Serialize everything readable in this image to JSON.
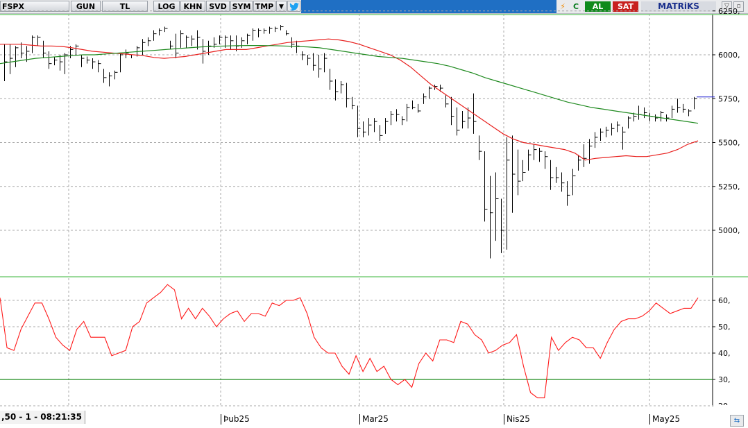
{
  "toolbar": {
    "symbol": "FSPX",
    "buttons": [
      "GUN",
      "TL",
      "LOG",
      "KHN",
      "SVD",
      "SYM",
      "TMP"
    ],
    "al_label": "AL",
    "sat_label": "SAT",
    "brand": "MATRiKS",
    "refresh_label": "C"
  },
  "status_text": ",50 - 1 - 08:21:35",
  "x_labels": [
    "Þub25",
    "Mar25",
    "Nis25",
    "May25"
  ],
  "colors": {
    "price_bars": "#000000",
    "ma_fast": "#e8201e",
    "ma_slow": "#1f8a1f",
    "rsi": "#ff1a1a",
    "rsi_level": "#1a8a1a",
    "panel_border": "#7acd7a",
    "toolbar_blue": "#1f6fc4"
  },
  "chart_data": [
    {
      "type": "ohlc",
      "panel": "price",
      "ylim": [
        4820,
        6260
      ],
      "yticks": [
        6250,
        6000,
        5750,
        5500,
        5250,
        5000
      ],
      "ytick_labels": [
        "6250,",
        "6000,",
        "5750,",
        "5500,",
        "5250,",
        "5000,"
      ],
      "grid": true,
      "last_marker": 5760,
      "bars": [
        {
          "h": 6060,
          "l": 5850,
          "c": 5960
        },
        {
          "h": 6060,
          "l": 5890,
          "c": 5980
        },
        {
          "h": 6050,
          "l": 5930,
          "c": 6040
        },
        {
          "h": 6070,
          "l": 5980,
          "c": 6010
        },
        {
          "h": 6050,
          "l": 5960,
          "c": 6020
        },
        {
          "h": 6110,
          "l": 6010,
          "c": 6100
        },
        {
          "h": 6110,
          "l": 6050,
          "c": 6100
        },
        {
          "h": 6080,
          "l": 5980,
          "c": 6010
        },
        {
          "h": 6020,
          "l": 5920,
          "c": 5950
        },
        {
          "h": 5990,
          "l": 5940,
          "c": 5970
        },
        {
          "h": 6000,
          "l": 5910,
          "c": 5960
        },
        {
          "h": 6010,
          "l": 5890,
          "c": 6000
        },
        {
          "h": 6050,
          "l": 5980,
          "c": 6030
        },
        {
          "h": 6060,
          "l": 6000,
          "c": 6050
        },
        {
          "h": 6000,
          "l": 5930,
          "c": 5980
        },
        {
          "h": 5990,
          "l": 5950,
          "c": 5970
        },
        {
          "h": 5980,
          "l": 5920,
          "c": 5960
        },
        {
          "h": 5970,
          "l": 5900,
          "c": 5950
        },
        {
          "h": 5920,
          "l": 5840,
          "c": 5870
        },
        {
          "h": 5900,
          "l": 5820,
          "c": 5880
        },
        {
          "h": 5910,
          "l": 5860,
          "c": 5900
        },
        {
          "h": 6010,
          "l": 5900,
          "c": 6000
        },
        {
          "h": 6030,
          "l": 5980,
          "c": 6010
        },
        {
          "h": 6000,
          "l": 5980,
          "c": 6000
        },
        {
          "h": 6050,
          "l": 5990,
          "c": 6040
        },
        {
          "h": 6090,
          "l": 6000,
          "c": 6070
        },
        {
          "h": 6100,
          "l": 6050,
          "c": 6080
        },
        {
          "h": 6140,
          "l": 6080,
          "c": 6120
        },
        {
          "h": 6150,
          "l": 6110,
          "c": 6140
        },
        {
          "h": 6160,
          "l": 6130,
          "c": 6150
        },
        {
          "h": 6080,
          "l": 6030,
          "c": 6050
        },
        {
          "h": 6120,
          "l": 5980,
          "c": 6010
        },
        {
          "h": 6140,
          "l": 6040,
          "c": 6120
        },
        {
          "h": 6110,
          "l": 6040,
          "c": 6100
        },
        {
          "h": 6110,
          "l": 6050,
          "c": 6090
        },
        {
          "h": 6140,
          "l": 6030,
          "c": 6100
        },
        {
          "h": 6090,
          "l": 5950,
          "c": 6020
        },
        {
          "h": 6080,
          "l": 6000,
          "c": 6050
        },
        {
          "h": 6100,
          "l": 6040,
          "c": 6060
        },
        {
          "h": 6110,
          "l": 6060,
          "c": 6100
        },
        {
          "h": 6110,
          "l": 6040,
          "c": 6100
        },
        {
          "h": 6110,
          "l": 6030,
          "c": 6080
        },
        {
          "h": 6110,
          "l": 6020,
          "c": 6050
        },
        {
          "h": 6100,
          "l": 6040,
          "c": 6080
        },
        {
          "h": 6120,
          "l": 6060,
          "c": 6110
        },
        {
          "h": 6150,
          "l": 6080,
          "c": 6140
        },
        {
          "h": 6150,
          "l": 6100,
          "c": 6140
        },
        {
          "h": 6150,
          "l": 6120,
          "c": 6140
        },
        {
          "h": 6160,
          "l": 6120,
          "c": 6150
        },
        {
          "h": 6160,
          "l": 6130,
          "c": 6150
        },
        {
          "h": 6170,
          "l": 6140,
          "c": 6160
        },
        {
          "h": 6140,
          "l": 6110,
          "c": 6120
        },
        {
          "h": 6100,
          "l": 6040,
          "c": 6060
        },
        {
          "h": 6080,
          "l": 6010,
          "c": 6050
        },
        {
          "h": 6020,
          "l": 5970,
          "c": 6000
        },
        {
          "h": 6000,
          "l": 5940,
          "c": 5980
        },
        {
          "h": 6010,
          "l": 5910,
          "c": 5940
        },
        {
          "h": 6000,
          "l": 5870,
          "c": 5920
        },
        {
          "h": 6010,
          "l": 5900,
          "c": 5980
        },
        {
          "h": 5920,
          "l": 5800,
          "c": 5850
        },
        {
          "h": 5860,
          "l": 5740,
          "c": 5790
        },
        {
          "h": 5850,
          "l": 5780,
          "c": 5830
        },
        {
          "h": 5840,
          "l": 5700,
          "c": 5750
        },
        {
          "h": 5760,
          "l": 5690,
          "c": 5710
        },
        {
          "h": 5710,
          "l": 5530,
          "c": 5580
        },
        {
          "h": 5620,
          "l": 5530,
          "c": 5560
        },
        {
          "h": 5640,
          "l": 5540,
          "c": 5600
        },
        {
          "h": 5640,
          "l": 5560,
          "c": 5620
        },
        {
          "h": 5600,
          "l": 5510,
          "c": 5540
        },
        {
          "h": 5640,
          "l": 5550,
          "c": 5620
        },
        {
          "h": 5680,
          "l": 5600,
          "c": 5660
        },
        {
          "h": 5690,
          "l": 5620,
          "c": 5660
        },
        {
          "h": 5650,
          "l": 5600,
          "c": 5630
        },
        {
          "h": 5720,
          "l": 5620,
          "c": 5700
        },
        {
          "h": 5740,
          "l": 5690,
          "c": 5700
        },
        {
          "h": 5720,
          "l": 5670,
          "c": 5680
        },
        {
          "h": 5780,
          "l": 5720,
          "c": 5760
        },
        {
          "h": 5820,
          "l": 5750,
          "c": 5810
        },
        {
          "h": 5830,
          "l": 5800,
          "c": 5820
        },
        {
          "h": 5830,
          "l": 5790,
          "c": 5810
        },
        {
          "h": 5770,
          "l": 5700,
          "c": 5720
        },
        {
          "h": 5760,
          "l": 5600,
          "c": 5650
        },
        {
          "h": 5700,
          "l": 5540,
          "c": 5570
        },
        {
          "h": 5680,
          "l": 5580,
          "c": 5620
        },
        {
          "h": 5700,
          "l": 5580,
          "c": 5640
        },
        {
          "h": 5780,
          "l": 5550,
          "c": 5620
        },
        {
          "h": 5540,
          "l": 5400,
          "c": 5450
        },
        {
          "h": 5450,
          "l": 5050,
          "c": 5120
        },
        {
          "h": 5310,
          "l": 4840,
          "c": 5100
        },
        {
          "h": 5330,
          "l": 4940,
          "c": 5180
        },
        {
          "h": 5180,
          "l": 4870,
          "c": 5000
        },
        {
          "h": 5530,
          "l": 4890,
          "c": 5400
        },
        {
          "h": 5540,
          "l": 5100,
          "c": 5320
        },
        {
          "h": 5460,
          "l": 5200,
          "c": 5280
        },
        {
          "h": 5400,
          "l": 5280,
          "c": 5330
        },
        {
          "h": 5460,
          "l": 5340,
          "c": 5430
        },
        {
          "h": 5490,
          "l": 5400,
          "c": 5460
        },
        {
          "h": 5470,
          "l": 5390,
          "c": 5450
        },
        {
          "h": 5450,
          "l": 5350,
          "c": 5420
        },
        {
          "h": 5400,
          "l": 5230,
          "c": 5300
        },
        {
          "h": 5360,
          "l": 5270,
          "c": 5300
        },
        {
          "h": 5330,
          "l": 5220,
          "c": 5270
        },
        {
          "h": 5280,
          "l": 5140,
          "c": 5200
        },
        {
          "h": 5350,
          "l": 5200,
          "c": 5310
        },
        {
          "h": 5430,
          "l": 5340,
          "c": 5400
        },
        {
          "h": 5490,
          "l": 5360,
          "c": 5410
        },
        {
          "h": 5520,
          "l": 5380,
          "c": 5480
        },
        {
          "h": 5560,
          "l": 5470,
          "c": 5530
        },
        {
          "h": 5580,
          "l": 5510,
          "c": 5560
        },
        {
          "h": 5590,
          "l": 5530,
          "c": 5570
        },
        {
          "h": 5610,
          "l": 5540,
          "c": 5580
        },
        {
          "h": 5620,
          "l": 5560,
          "c": 5600
        },
        {
          "h": 5590,
          "l": 5460,
          "c": 5560
        },
        {
          "h": 5650,
          "l": 5580,
          "c": 5640
        },
        {
          "h": 5670,
          "l": 5620,
          "c": 5650
        },
        {
          "h": 5710,
          "l": 5630,
          "c": 5660
        },
        {
          "h": 5700,
          "l": 5640,
          "c": 5670
        },
        {
          "h": 5670,
          "l": 5620,
          "c": 5650
        },
        {
          "h": 5660,
          "l": 5620,
          "c": 5640
        },
        {
          "h": 5680,
          "l": 5620,
          "c": 5670
        },
        {
          "h": 5660,
          "l": 5620,
          "c": 5640
        },
        {
          "h": 5710,
          "l": 5640,
          "c": 5690
        },
        {
          "h": 5750,
          "l": 5670,
          "c": 5700
        },
        {
          "h": 5720,
          "l": 5670,
          "c": 5690
        },
        {
          "h": 5690,
          "l": 5650,
          "c": 5680
        },
        {
          "h": 5760,
          "l": 5690,
          "c": 5750
        }
      ],
      "ma_fast": [
        6060,
        6060,
        6060,
        6055,
        6050,
        6050,
        6048,
        6040,
        6030,
        6020,
        6015,
        6010,
        6005,
        6000,
        5995,
        5985,
        5980,
        5985,
        5990,
        6000,
        6010,
        6020,
        6030,
        6030,
        6030,
        6040,
        6050,
        6060,
        6070,
        6075,
        6080,
        6085,
        6090,
        6085,
        6075,
        6060,
        6040,
        6020,
        6000,
        5970,
        5930,
        5880,
        5830,
        5790,
        5750,
        5710,
        5670,
        5630,
        5590,
        5550,
        5520,
        5500,
        5490,
        5480,
        5470,
        5460,
        5440,
        5400,
        5410,
        5415,
        5420,
        5425,
        5420,
        5420,
        5430,
        5440,
        5460,
        5490,
        5510
      ],
      "ma_slow": [
        5950,
        5960,
        5970,
        5980,
        5985,
        5990,
        5995,
        6000,
        6000,
        6005,
        6010,
        6015,
        6020,
        6025,
        6030,
        6035,
        6040,
        6045,
        6048,
        6050,
        6052,
        6053,
        6053,
        6052,
        6050,
        6048,
        6045,
        6040,
        6030,
        6020,
        6010,
        6000,
        5990,
        5985,
        5980,
        5970,
        5960,
        5950,
        5935,
        5915,
        5895,
        5870,
        5850,
        5830,
        5810,
        5790,
        5770,
        5750,
        5730,
        5715,
        5700,
        5690,
        5680,
        5670,
        5660,
        5650,
        5640,
        5630,
        5620,
        5610
      ]
    },
    {
      "type": "line",
      "panel": "rsi",
      "ylim": [
        20,
        67
      ],
      "yticks": [
        60,
        50,
        40,
        30,
        20
      ],
      "ytick_labels": [
        "60,",
        "50,",
        "40,",
        "30,",
        "20,"
      ],
      "reference_level": 30,
      "grid": true,
      "rsi": [
        61,
        42,
        41,
        49,
        54,
        59,
        59,
        53,
        46,
        43,
        41,
        49,
        52,
        46,
        46,
        46,
        39,
        40,
        41,
        50,
        52,
        59,
        61,
        63,
        66,
        64,
        53,
        57,
        53,
        57,
        54,
        50,
        53,
        55,
        56,
        52,
        55,
        55,
        54,
        59,
        58,
        60,
        60,
        61,
        55,
        46,
        42,
        40,
        40,
        35,
        32,
        39,
        33,
        38,
        33,
        35,
        30,
        28,
        30,
        27,
        36,
        40,
        37,
        45,
        45,
        44,
        52,
        51,
        47,
        45,
        40,
        41,
        43,
        44,
        47,
        35,
        25,
        23,
        23,
        46,
        41,
        44,
        46,
        45,
        42,
        42,
        38,
        44,
        49,
        52,
        53,
        53,
        54,
        56,
        59,
        57,
        55,
        56,
        57,
        57,
        61
      ]
    }
  ]
}
